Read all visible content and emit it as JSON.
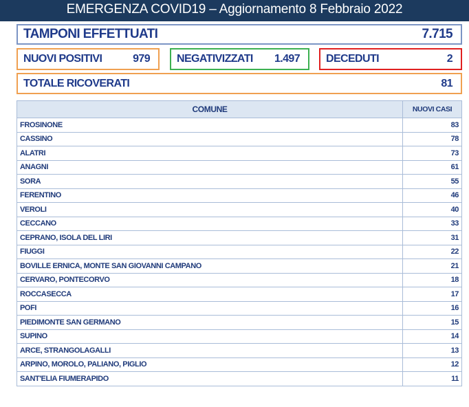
{
  "title": "EMERGENZA COVID19 – Aggiornamento 8 Febbraio 2022",
  "tamponi": {
    "label": "TAMPONI EFFETTUATI",
    "value": "7.715"
  },
  "positivi": {
    "label": "NUOVI POSITIVI",
    "value": "979"
  },
  "negativizzati": {
    "label": "NEGATIVIZZATI",
    "value": "1.497"
  },
  "deceduti": {
    "label": "DECEDUTI",
    "value": "2"
  },
  "ricoverati": {
    "label": "TOTALE RICOVERATI",
    "value": "81"
  },
  "table": {
    "headers": [
      "COMUNE",
      "NUOVI CASI"
    ],
    "rows": [
      [
        "FROSINONE",
        "83"
      ],
      [
        "CASSINO",
        "78"
      ],
      [
        "ALATRI",
        "73"
      ],
      [
        "ANAGNI",
        "61"
      ],
      [
        "SORA",
        "55"
      ],
      [
        "FERENTINO",
        "46"
      ],
      [
        "VEROLI",
        "40"
      ],
      [
        "CECCANO",
        "33"
      ],
      [
        "CEPRANO, ISOLA DEL LIRI",
        "31"
      ],
      [
        "FIUGGI",
        "22"
      ],
      [
        "BOVILLE ERNICA, MONTE SAN GIOVANNI CAMPANO",
        "21"
      ],
      [
        "CERVARO, PONTECORVO",
        "18"
      ],
      [
        "ROCCASECCA",
        "17"
      ],
      [
        "POFI",
        "16"
      ],
      [
        "PIEDIMONTE SAN GERMANO",
        "15"
      ],
      [
        "SUPINO",
        "14"
      ],
      [
        "ARCE, STRANGOLAGALLI",
        "13"
      ],
      [
        "ARPINO, MOROLO, PALIANO, PIGLIO",
        "12"
      ],
      [
        "SANT'ELIA FIUMERAPIDO",
        "11"
      ]
    ]
  }
}
